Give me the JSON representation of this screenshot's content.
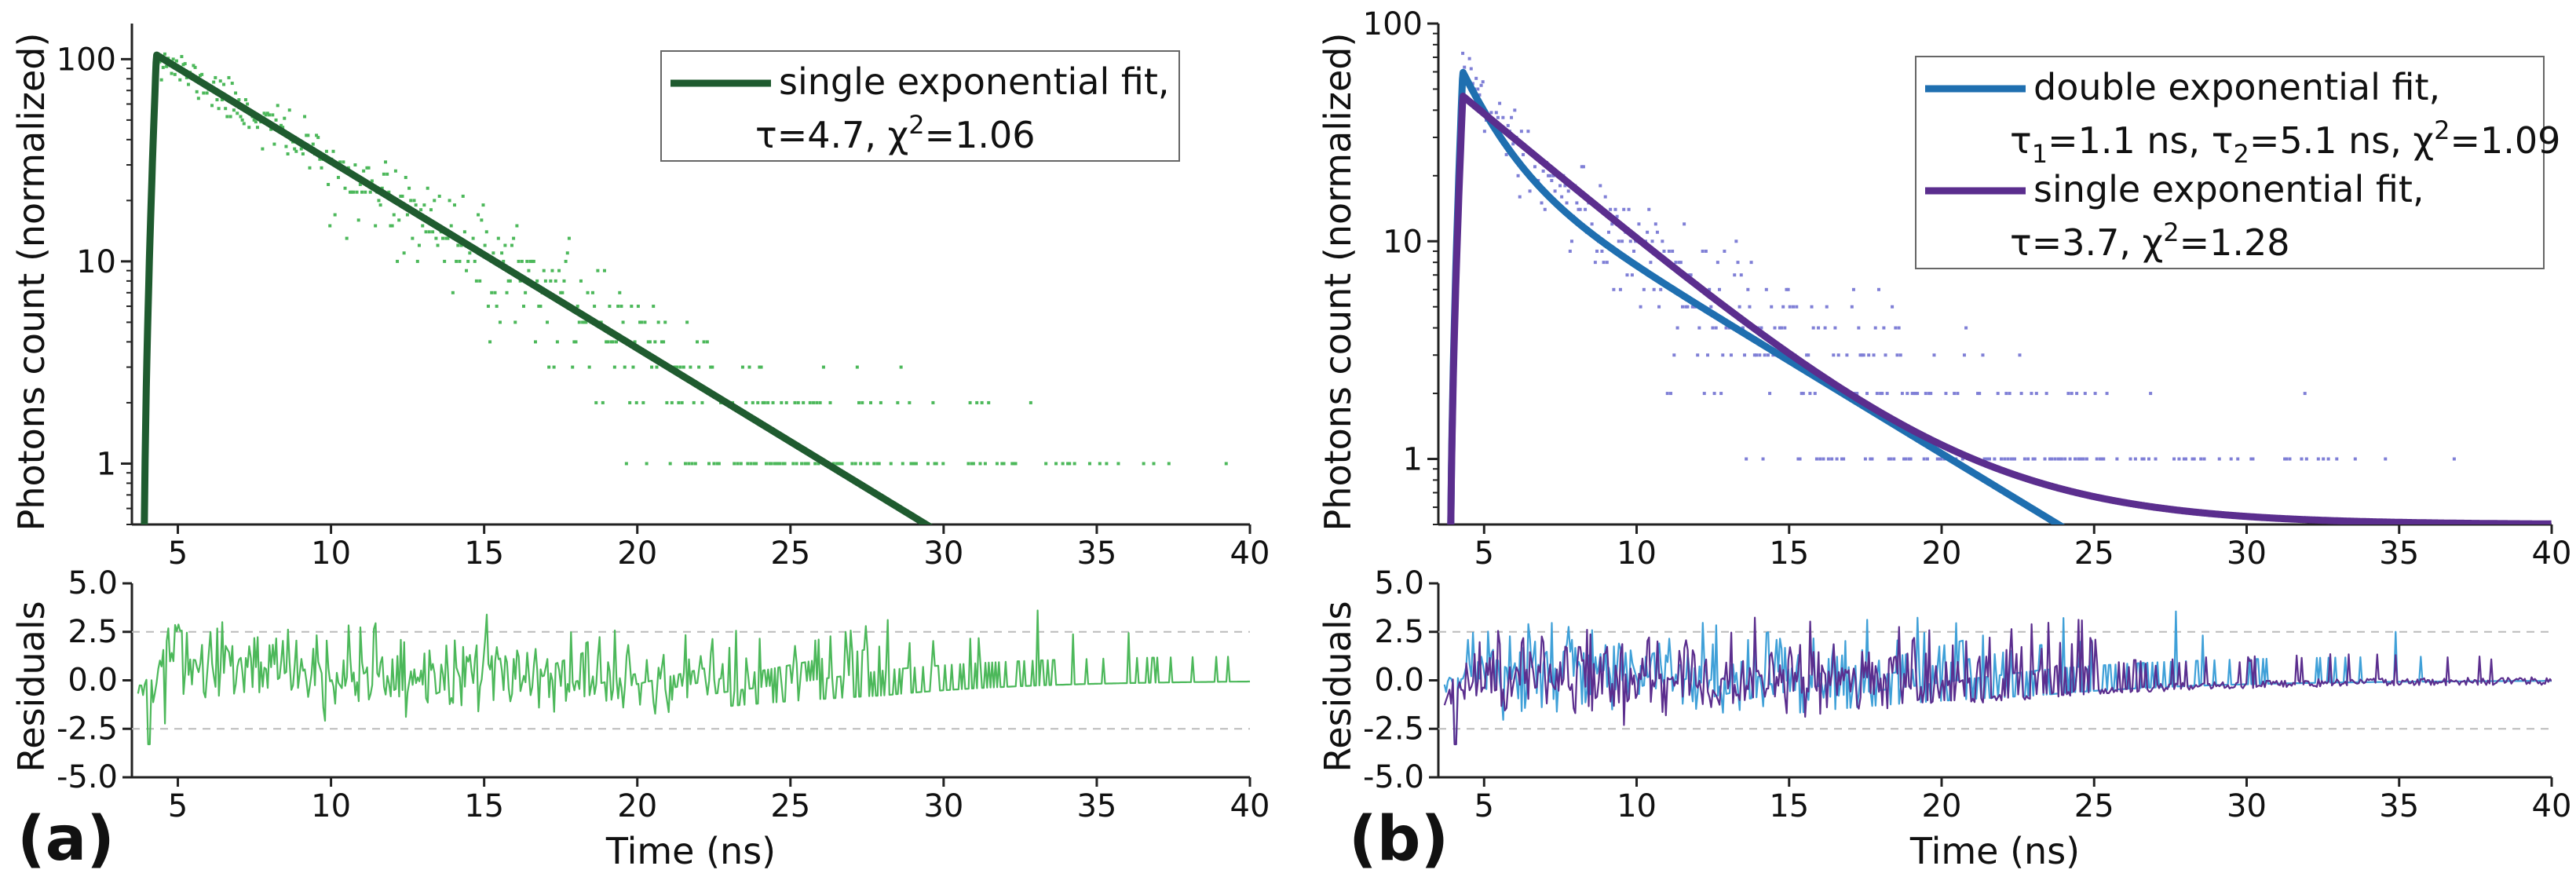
{
  "chart_data": [
    {
      "panel_label": "(a)",
      "type": "scatter",
      "main": {
        "ylabel": "Photons count (normalized)",
        "y_scale": "log",
        "xlim": [
          3.5,
          40
        ],
        "ylim": [
          0.5,
          150
        ],
        "x_ticks": [
          "5",
          "10",
          "15",
          "20",
          "25",
          "30",
          "35",
          "40"
        ],
        "y_ticks": [
          "1",
          "10",
          "100"
        ],
        "legend_position": "top-right",
        "series": [
          {
            "name": "single exponential fit,",
            "params": "τ=4.7, χ2=1.06",
            "kind": "fit",
            "color": "#1f5b2f",
            "rise_start": 3.9,
            "peak_x": 4.3,
            "peak_y": 105,
            "tau": 4.7,
            "offset": 0
          },
          {
            "kind": "measured",
            "color": "#4cb85a",
            "peak_x": 4.3,
            "peak_y": 105,
            "tau": 4.7,
            "offset": 0
          }
        ]
      },
      "residuals": {
        "ylabel": "Residuals",
        "xlabel": "Time (ns)",
        "ylim": [
          -5,
          5
        ],
        "y_ticks": [
          "5.0",
          "2.5",
          "0.0",
          "-2.5",
          "-5.0"
        ],
        "threshold_lines": [
          2.5,
          -2.5
        ],
        "series": [
          {
            "kind": "residual",
            "color": "#4cb85a"
          }
        ]
      }
    },
    {
      "panel_label": "(b)",
      "type": "scatter",
      "main": {
        "ylabel": "Photons count (normalized)",
        "y_scale": "log",
        "xlim": [
          3.5,
          40
        ],
        "ylim": [
          0.5,
          100
        ],
        "x_ticks": [
          "5",
          "10",
          "15",
          "20",
          "25",
          "30",
          "35",
          "40"
        ],
        "y_ticks": [
          "1",
          "10",
          "100"
        ],
        "legend_position": "top-right",
        "series": [
          {
            "name": "double exponential fit,",
            "params": "τ1=1.1 ns, τ2=5.1 ns, χ2=1.09",
            "kind": "fit",
            "color": "#1f6fb0",
            "rise_start": 3.9,
            "peak_x": 4.3,
            "peak_y": 60,
            "a1": 37,
            "tau1": 1.1,
            "a2": 23,
            "tau2": 5.1,
            "offset": 0
          },
          {
            "name": "single exponential fit,",
            "params": "τ=3.7, χ2=1.28",
            "kind": "fit",
            "color": "#5b2e8e",
            "rise_start": 3.9,
            "peak_x": 4.3,
            "peak_y": 46,
            "tau": 3.7,
            "offset": 0.5
          },
          {
            "kind": "measured",
            "color": "#7f7fd6",
            "peak_x": 4.3,
            "peak_y": 65,
            "a1": 38,
            "tau1": 1.1,
            "a2": 27,
            "tau2": 5.1,
            "offset": 0
          }
        ]
      },
      "residuals": {
        "ylabel": "Residuals",
        "xlabel": "Time (ns)",
        "ylim": [
          -5,
          5
        ],
        "y_ticks": [
          "5.0",
          "2.5",
          "0.0",
          "-2.5",
          "-5.0"
        ],
        "threshold_lines": [
          2.5,
          -2.5
        ],
        "series": [
          {
            "kind": "residual",
            "color": "#3fa0d8"
          },
          {
            "kind": "residual",
            "color": "#5b2e8e"
          }
        ]
      }
    }
  ]
}
